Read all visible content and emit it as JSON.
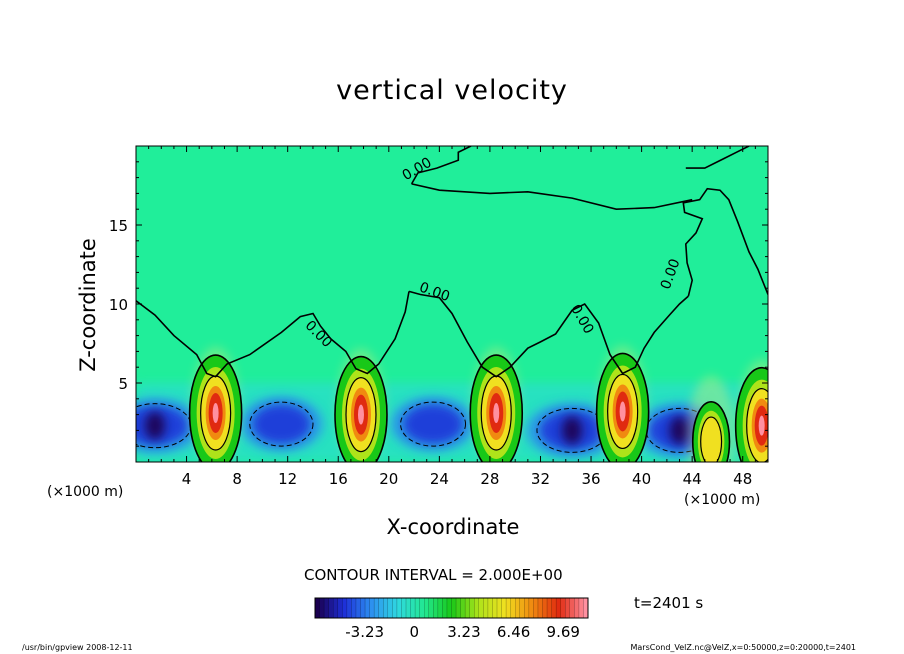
{
  "chart_data": {
    "type": "heatmap",
    "title": "vertical velocity",
    "xlabel": "X-coordinate",
    "ylabel": "Z-coordinate",
    "x_unit_left": "(×1000 m)",
    "x_unit_right": "(×1000 m)",
    "xlim": [
      0,
      50
    ],
    "ylim": [
      0,
      20
    ],
    "xticks": [
      4,
      8,
      12,
      16,
      20,
      24,
      28,
      32,
      36,
      40,
      44,
      48
    ],
    "yticks": [
      5,
      10,
      15
    ],
    "contour_interval": "CONTOUR INTERVAL = 2.000E+00",
    "contour_label": "0.00",
    "time": "t=2401 s",
    "colorbar": {
      "ticks": [
        "-3.23",
        "0",
        "3.23",
        "6.46",
        "9.69"
      ],
      "tick_values": [
        -3.23,
        0,
        3.23,
        6.46,
        9.69
      ],
      "range": [
        -6.46,
        11.3
      ],
      "colors": [
        "#1a0050",
        "#1e2fd8",
        "#2d8ff0",
        "#2fd8e0",
        "#22e890",
        "#18c818",
        "#aee31a",
        "#f0e020",
        "#f08a10",
        "#e02a10",
        "#ff90a0"
      ]
    },
    "background_color": "#20ee9a",
    "updrafts": [
      {
        "x": 6.3,
        "z": 3.1,
        "max": 9.7
      },
      {
        "x": 17.8,
        "z": 3.0,
        "max": 9.7
      },
      {
        "x": 28.5,
        "z": 3.1,
        "max": 9.7
      },
      {
        "x": 38.5,
        "z": 3.2,
        "max": 9.7
      },
      {
        "x": 45.5,
        "z": 1.3,
        "max": 6.0
      },
      {
        "x": 49.5,
        "z": 2.3,
        "max": 9.7
      }
    ],
    "downdrafts": [
      {
        "x": 1.5,
        "z": 2.3,
        "min": -6.0
      },
      {
        "x": 11.5,
        "z": 2.4,
        "min": -3.5
      },
      {
        "x": 23.5,
        "z": 2.4,
        "min": -4.0
      },
      {
        "x": 34.5,
        "z": 2.0,
        "min": -5.5
      },
      {
        "x": 43.0,
        "z": 2.0,
        "min": -4.5
      }
    ],
    "footer_left": "/usr/bin/gpview   2008-12-11",
    "footer_right": "MarsCond_VelZ.nc@VelZ,x=0:50000,z=0:20000,t=2401"
  }
}
